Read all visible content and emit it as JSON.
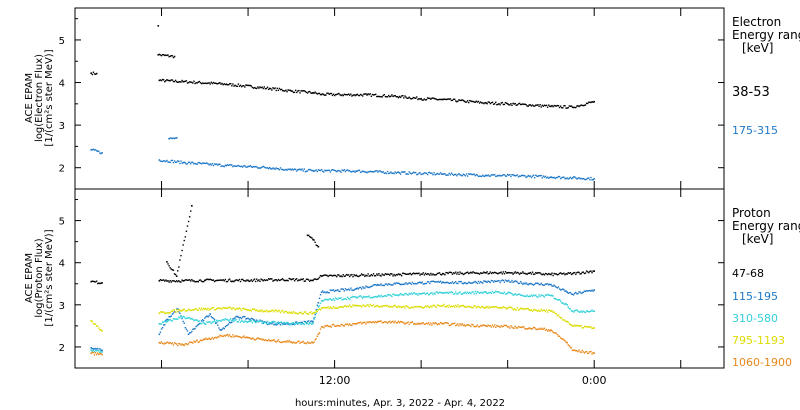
{
  "chart_data": [
    {
      "type": "scatter",
      "instrument": "ACE EPAM",
      "ylabel_lines": [
        "ACE EPAM",
        "log(Electron Flux)",
        "[1/(cm²s ster MeV)]"
      ],
      "legend_title_lines": [
        "Electron",
        "Energy range",
        "[keV]"
      ],
      "ylim": [
        1.5,
        5.75
      ],
      "yticks": [
        2,
        3,
        4,
        5
      ],
      "series": [
        {
          "name": "38-53",
          "color": "#000000",
          "points": [
            [
              -22.5,
              4.22
            ],
            [
              -22.0,
              4.21
            ],
            [
              -16.3,
              5.33
            ],
            [
              -16.3,
              4.65
            ],
            [
              -14.8,
              4.61
            ],
            [
              -16.2,
              4.05
            ],
            [
              -14,
              4.02
            ],
            [
              -10,
              3.96
            ],
            [
              -6,
              3.86
            ],
            [
              -4,
              3.8
            ],
            [
              -2,
              3.76
            ],
            [
              -1.2,
              3.72
            ],
            [
              2,
              3.71
            ],
            [
              3,
              3.71
            ],
            [
              6,
              3.67
            ],
            [
              8,
              3.62
            ],
            [
              10,
              3.6
            ],
            [
              12,
              3.56
            ],
            [
              14,
              3.52
            ],
            [
              16,
              3.5
            ],
            [
              18,
              3.47
            ],
            [
              20,
              3.44
            ],
            [
              22,
              3.42
            ],
            [
              24,
              3.55
            ]
          ]
        },
        {
          "name": "175-315",
          "color": "#1e78c8",
          "points": [
            [
              -22.5,
              2.42
            ],
            [
              -21.5,
              2.35
            ],
            [
              -15.3,
              2.68
            ],
            [
              -14.6,
              2.7
            ],
            [
              -16.2,
              2.18
            ],
            [
              -14,
              2.12
            ],
            [
              -10,
              2.05
            ],
            [
              -6,
              2.0
            ],
            [
              -4,
              1.95
            ],
            [
              -2,
              1.93
            ],
            [
              2,
              1.92
            ],
            [
              6,
              1.88
            ],
            [
              10,
              1.85
            ],
            [
              14,
              1.82
            ],
            [
              18,
              1.8
            ],
            [
              20,
              1.78
            ],
            [
              22,
              1.76
            ],
            [
              24,
              1.74
            ]
          ]
        }
      ]
    },
    {
      "type": "scatter",
      "instrument": "ACE EPAM",
      "ylabel_lines": [
        "ACE EPAM",
        "log(Proton Flux)",
        "[1/(cm²s ster MeV)]"
      ],
      "legend_title_lines": [
        "Proton",
        "Energy range",
        "[keV]"
      ],
      "ylim": [
        1.5,
        5.75
      ],
      "yticks": [
        2,
        3,
        4,
        5
      ],
      "series": [
        {
          "name": "47-68",
          "color": "#000000",
          "points": [
            [
              -22.5,
              3.55
            ],
            [
              -21.5,
              3.52
            ],
            [
              -15.5,
              4.02
            ],
            [
              -14.6,
              3.68
            ],
            [
              -13.2,
              5.35
            ],
            [
              -2.5,
              4.65
            ],
            [
              -2.0,
              4.55
            ],
            [
              -1.5,
              4.38
            ],
            [
              -16.2,
              3.57
            ],
            [
              -14,
              3.57
            ],
            [
              -12,
              3.58
            ],
            [
              -8,
              3.58
            ],
            [
              -4,
              3.6
            ],
            [
              -2,
              3.58
            ],
            [
              -1.2,
              3.68
            ],
            [
              2,
              3.7
            ],
            [
              6,
              3.72
            ],
            [
              10,
              3.74
            ],
            [
              14,
              3.76
            ],
            [
              16,
              3.76
            ],
            [
              18,
              3.75
            ],
            [
              20,
              3.72
            ],
            [
              22,
              3.74
            ],
            [
              24,
              3.8
            ]
          ]
        },
        {
          "name": "115-195",
          "color": "#1e78c8",
          "points": [
            [
              -22.5,
              1.98
            ],
            [
              -21.5,
              1.92
            ],
            [
              -16.2,
              2.3
            ],
            [
              -15.5,
              2.65
            ],
            [
              -14.5,
              2.9
            ],
            [
              -13.5,
              2.3
            ],
            [
              -12.5,
              2.55
            ],
            [
              -11.5,
              2.78
            ],
            [
              -10.5,
              2.4
            ],
            [
              -9,
              2.72
            ],
            [
              -7.5,
              2.65
            ],
            [
              -6,
              2.55
            ],
            [
              -4,
              2.55
            ],
            [
              -2,
              2.6
            ],
            [
              -1.5,
              3.05
            ],
            [
              -1.2,
              3.3
            ],
            [
              2,
              3.38
            ],
            [
              4,
              3.48
            ],
            [
              6,
              3.5
            ],
            [
              8,
              3.52
            ],
            [
              10,
              3.54
            ],
            [
              12,
              3.52
            ],
            [
              14,
              3.55
            ],
            [
              16,
              3.56
            ],
            [
              18,
              3.5
            ],
            [
              20,
              3.48
            ],
            [
              21.5,
              3.3
            ],
            [
              22,
              3.25
            ],
            [
              24,
              3.35
            ]
          ]
        },
        {
          "name": "310-580",
          "color": "#33d0d8",
          "points": [
            [
              -22.5,
              1.92
            ],
            [
              -21.5,
              1.88
            ],
            [
              -16.2,
              2.55
            ],
            [
              -15.5,
              2.6
            ],
            [
              -14,
              2.72
            ],
            [
              -12,
              2.55
            ],
            [
              -10,
              2.65
            ],
            [
              -8,
              2.6
            ],
            [
              -6,
              2.58
            ],
            [
              -4,
              2.55
            ],
            [
              -2,
              2.56
            ],
            [
              -1.5,
              2.95
            ],
            [
              -1.2,
              3.1
            ],
            [
              2,
              3.18
            ],
            [
              4,
              3.2
            ],
            [
              6,
              3.24
            ],
            [
              8,
              3.26
            ],
            [
              10,
              3.28
            ],
            [
              12,
              3.28
            ],
            [
              14,
              3.3
            ],
            [
              16,
              3.28
            ],
            [
              18,
              3.2
            ],
            [
              20,
              3.22
            ],
            [
              21.5,
              3.0
            ],
            [
              22,
              2.85
            ],
            [
              24,
              2.85
            ]
          ]
        },
        {
          "name": "795-1193",
          "color": "#dcdc00",
          "points": [
            [
              -22.5,
              2.62
            ],
            [
              -21.5,
              2.38
            ],
            [
              -16.2,
              2.8
            ],
            [
              -14,
              2.88
            ],
            [
              -12,
              2.9
            ],
            [
              -10,
              2.92
            ],
            [
              -8,
              2.88
            ],
            [
              -6,
              2.85
            ],
            [
              -4,
              2.82
            ],
            [
              -2,
              2.8
            ],
            [
              -1.2,
              2.92
            ],
            [
              2,
              2.98
            ],
            [
              4,
              2.98
            ],
            [
              6,
              2.95
            ],
            [
              8,
              2.95
            ],
            [
              10,
              2.98
            ],
            [
              12,
              2.96
            ],
            [
              14,
              2.94
            ],
            [
              16,
              2.92
            ],
            [
              18,
              2.88
            ],
            [
              20,
              2.85
            ],
            [
              21.5,
              2.6
            ],
            [
              22,
              2.5
            ],
            [
              24,
              2.45
            ]
          ]
        },
        {
          "name": "1060-1900",
          "color": "#e8881a",
          "points": [
            [
              -22.5,
              1.85
            ],
            [
              -21.5,
              1.82
            ],
            [
              -16.2,
              2.1
            ],
            [
              -14,
              2.05
            ],
            [
              -12,
              2.18
            ],
            [
              -10,
              2.28
            ],
            [
              -8,
              2.22
            ],
            [
              -6,
              2.15
            ],
            [
              -4,
              2.12
            ],
            [
              -2,
              2.1
            ],
            [
              -1.5,
              2.3
            ],
            [
              -1.2,
              2.48
            ],
            [
              2,
              2.55
            ],
            [
              4,
              2.6
            ],
            [
              6,
              2.58
            ],
            [
              8,
              2.55
            ],
            [
              10,
              2.55
            ],
            [
              12,
              2.52
            ],
            [
              14,
              2.5
            ],
            [
              16,
              2.48
            ],
            [
              18,
              2.45
            ],
            [
              20,
              2.4
            ],
            [
              21.5,
              2.1
            ],
            [
              22,
              1.92
            ],
            [
              24,
              1.85
            ]
          ]
        }
      ]
    }
  ],
  "x_axis": {
    "xlim": [
      -24,
      36
    ],
    "tick_labels": [
      {
        "x": 0,
        "label": "12:00"
      },
      {
        "x": 24,
        "label": "0:00"
      }
    ],
    "major_ticks": [
      -24,
      -16,
      -8,
      0,
      8,
      16,
      24,
      32
    ],
    "xlabel": "hours:minutes, Apr.  3, 2022 - Apr.  4, 2022"
  }
}
